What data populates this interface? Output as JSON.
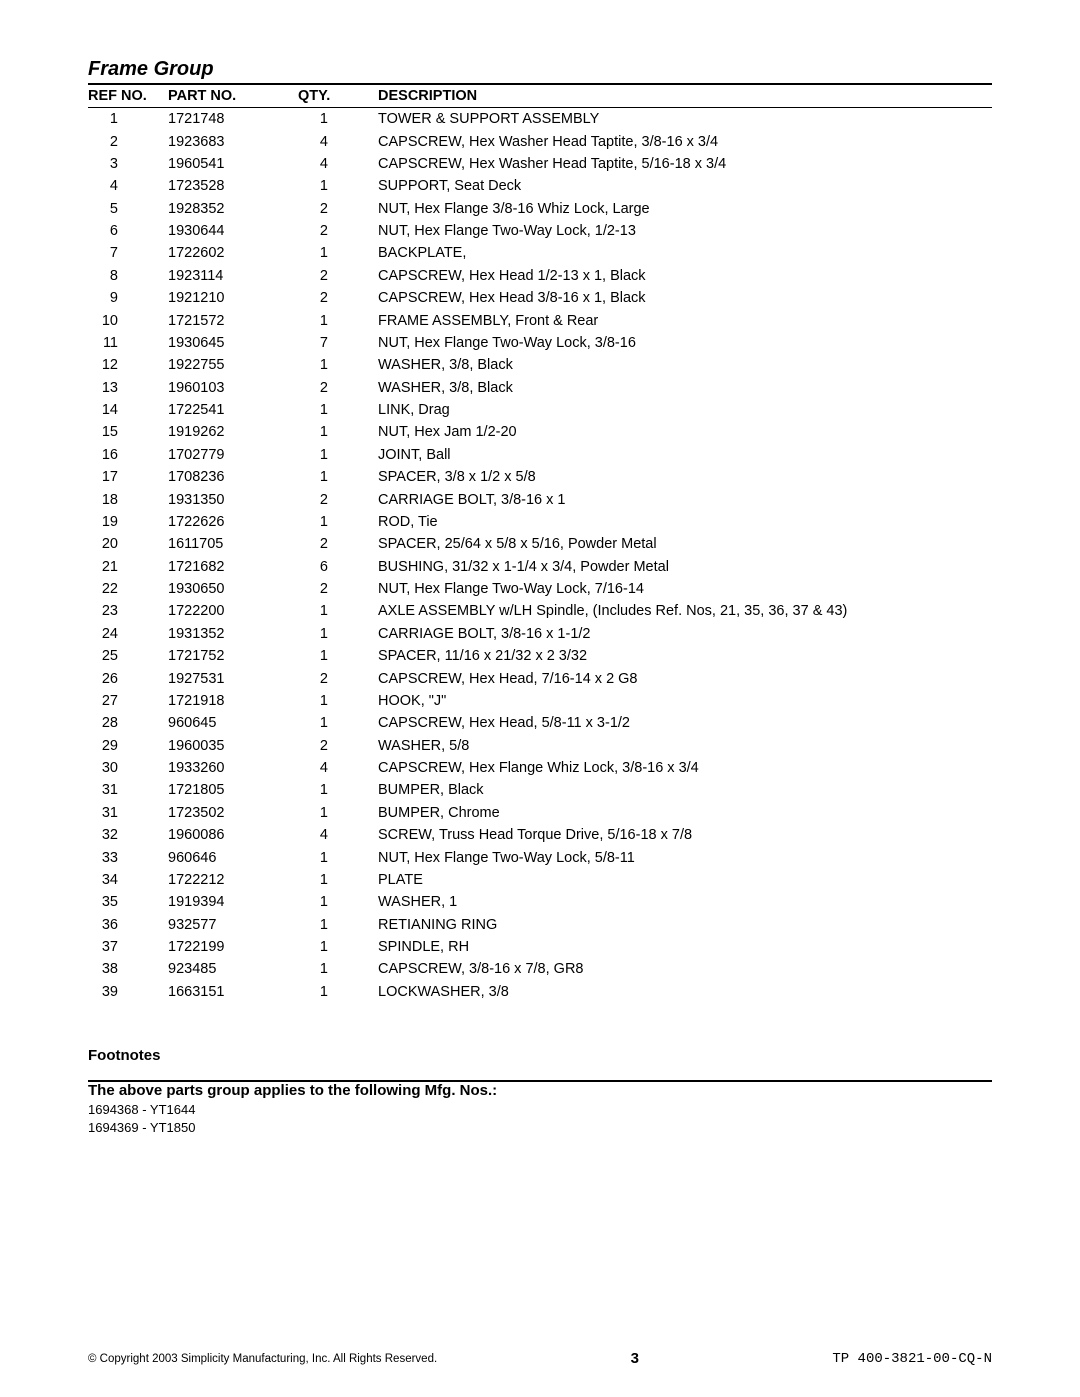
{
  "group_title": "Frame Group",
  "headers": {
    "ref": "REF NO.",
    "part": "PART NO.",
    "qty": "QTY.",
    "desc": "DESCRIPTION"
  },
  "rows": [
    {
      "ref": "1",
      "part": "1721748",
      "qty": "1",
      "desc": "TOWER & SUPPORT ASSEMBLY"
    },
    {
      "ref": "2",
      "part": "1923683",
      "qty": "4",
      "desc": "CAPSCREW, Hex Washer Head Taptite, 3/8-16 x 3/4"
    },
    {
      "ref": "3",
      "part": "1960541",
      "qty": "4",
      "desc": "CAPSCREW, Hex Washer Head Taptite, 5/16-18 x 3/4"
    },
    {
      "ref": "4",
      "part": "1723528",
      "qty": "1",
      "desc": "SUPPORT,  Seat Deck"
    },
    {
      "ref": "5",
      "part": "1928352",
      "qty": "2",
      "desc": "NUT, Hex Flange 3/8-16 Whiz Lock, Large"
    },
    {
      "ref": "6",
      "part": "1930644",
      "qty": "2",
      "desc": "NUT, Hex Flange Two-Way Lock,  1/2-13"
    },
    {
      "ref": "7",
      "part": "1722602",
      "qty": "1",
      "desc": "BACKPLATE,"
    },
    {
      "ref": "8",
      "part": "1923114",
      "qty": "2",
      "desc": "CAPSCREW, Hex Head 1/2-13 x 1, Black"
    },
    {
      "ref": "9",
      "part": "1921210",
      "qty": "2",
      "desc": "CAPSCREW, Hex Head 3/8-16 x 1, Black"
    },
    {
      "ref": "10",
      "part": "1721572",
      "qty": "1",
      "desc": "FRAME ASSEMBLY, Front & Rear"
    },
    {
      "ref": "11",
      "part": "1930645",
      "qty": "7",
      "desc": "NUT, Hex Flange Two-Way Lock, 3/8-16"
    },
    {
      "ref": "12",
      "part": "1922755",
      "qty": "1",
      "desc": "WASHER, 3/8, Black"
    },
    {
      "ref": "13",
      "part": "1960103",
      "qty": "2",
      "desc": "WASHER, 3/8, Black"
    },
    {
      "ref": "14",
      "part": "1722541",
      "qty": "1",
      "desc": "LINK, Drag"
    },
    {
      "ref": "15",
      "part": "1919262",
      "qty": "1",
      "desc": "NUT, Hex Jam 1/2-20"
    },
    {
      "ref": "16",
      "part": "1702779",
      "qty": "1",
      "desc": "JOINT, Ball"
    },
    {
      "ref": "17",
      "part": "1708236",
      "qty": "1",
      "desc": "SPACER, 3/8 x 1/2 x 5/8"
    },
    {
      "ref": "18",
      "part": "1931350",
      "qty": "2",
      "desc": "CARRIAGE BOLT, 3/8-16 x 1"
    },
    {
      "ref": "19",
      "part": "1722626",
      "qty": "1",
      "desc": "ROD, Tie"
    },
    {
      "ref": "20",
      "part": "1611705",
      "qty": "2",
      "desc": "SPACER, 25/64 x 5/8 x 5/16, Powder Metal"
    },
    {
      "ref": "21",
      "part": "1721682",
      "qty": "6",
      "desc": "BUSHING, 31/32 x 1-1/4 x 3/4, Powder Metal"
    },
    {
      "ref": "22",
      "part": "1930650",
      "qty": "2",
      "desc": "NUT, Hex Flange Two-Way Lock,  7/16-14"
    },
    {
      "ref": "23",
      "part": "1722200",
      "qty": "1",
      "desc": "AXLE ASSEMBLY w/LH Spindle, (Includes Ref. Nos, 21, 35, 36, 37 & 43)"
    },
    {
      "ref": "24",
      "part": "1931352",
      "qty": "1",
      "desc": "CARRIAGE BOLT, 3/8-16 x 1-1/2"
    },
    {
      "ref": "25",
      "part": "1721752",
      "qty": "1",
      "desc": "SPACER, 11/16 x 21/32 x 2 3/32"
    },
    {
      "ref": "26",
      "part": "1927531",
      "qty": "2",
      "desc": "CAPSCREW, Hex Head, 7/16-14 x 2 G8"
    },
    {
      "ref": "27",
      "part": "1721918",
      "qty": "1",
      "desc": "HOOK, \"J\""
    },
    {
      "ref": "28",
      "part": "960645",
      "qty": "1",
      "desc": "CAPSCREW, Hex Head, 5/8-11 x 3-1/2"
    },
    {
      "ref": "29",
      "part": "1960035",
      "qty": "2",
      "desc": "WASHER, 5/8"
    },
    {
      "ref": "30",
      "part": "1933260",
      "qty": "4",
      "desc": "CAPSCREW, Hex Flange Whiz Lock, 3/8-16 x 3/4"
    },
    {
      "ref": "31",
      "part": "1721805",
      "qty": "1",
      "desc": "BUMPER, Black"
    },
    {
      "ref": "31",
      "part": "1723502",
      "qty": "1",
      "desc": "BUMPER, Chrome"
    },
    {
      "ref": "32",
      "part": "1960086",
      "qty": "4",
      "desc": "SCREW, Truss Head Torque Drive, 5/16-18 x 7/8"
    },
    {
      "ref": "33",
      "part": "960646",
      "qty": "1",
      "desc": "NUT, Hex Flange Two-Way Lock,  5/8-11"
    },
    {
      "ref": "34",
      "part": "1722212",
      "qty": "1",
      "desc": "PLATE"
    },
    {
      "ref": "35",
      "part": "1919394",
      "qty": "1",
      "desc": "WASHER, 1"
    },
    {
      "ref": "36",
      "part": "932577",
      "qty": "1",
      "desc": "RETIANING RING"
    },
    {
      "ref": "37",
      "part": "1722199",
      "qty": "1",
      "desc": "SPINDLE, RH"
    },
    {
      "ref": "38",
      "part": "923485",
      "qty": "1",
      "desc": "CAPSCREW, 3/8-16 x 7/8, GR8"
    },
    {
      "ref": "39",
      "part": "1663151",
      "qty": "1",
      "desc": "LOCKWASHER, 3/8"
    }
  ],
  "footnotes_title": "Footnotes",
  "applies": {
    "title": "The above parts group applies to the following Mfg. Nos.:",
    "lines": [
      "1694368 - YT1644",
      "1694369 - YT1850"
    ]
  },
  "footer": {
    "copyright": "© Copyright 2003 Simplicity Manufacturing, Inc. All Rights Reserved.",
    "page": "3",
    "doc_id": "TP 400-3821-00-CQ-N"
  }
}
